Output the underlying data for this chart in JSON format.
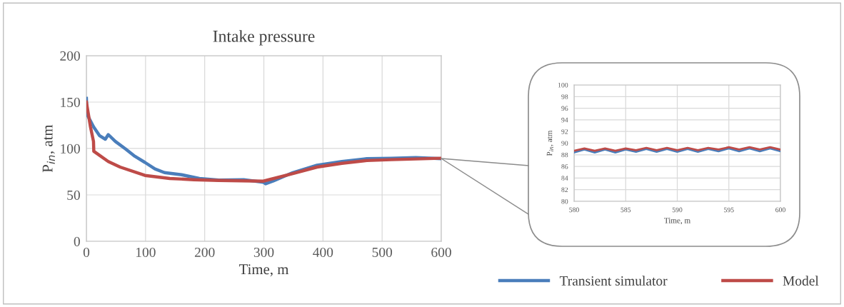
{
  "chart_data": [
    {
      "type": "line",
      "title": "Intake pressure",
      "xlabel": "Time, m",
      "ylabel": "P$_{in}$, atm",
      "xlim": [
        0,
        600
      ],
      "xticks": [
        0,
        100,
        200,
        300,
        400,
        500,
        600
      ],
      "ylim": [
        0,
        200
      ],
      "yticks": [
        0,
        50,
        100,
        150,
        200
      ],
      "grid": true,
      "legend": "bottom right",
      "series": [
        {
          "name": "Transient simulator",
          "color": "#4a7ebb",
          "x": [
            0,
            1,
            12,
            22,
            32,
            37,
            49,
            66,
            82,
            99,
            116,
            132,
            161,
            191,
            224,
            266,
            299,
            303,
            316,
            349,
            390,
            432,
            474,
            515,
            557,
            600
          ],
          "values": [
            154,
            137,
            123.5,
            114,
            110,
            115,
            107.6,
            99.6,
            91.6,
            85,
            78,
            74,
            71.7,
            67.7,
            66,
            66.4,
            63.7,
            62,
            65,
            74,
            82,
            86,
            89,
            89.5,
            90.3,
            89
          ]
        },
        {
          "name": "Model",
          "color": "#be4b48",
          "x": [
            0,
            7,
            12,
            12.5,
            37,
            57,
            99,
            141,
            182,
            224,
            299,
            349,
            390,
            432,
            474,
            515,
            600
          ],
          "values": [
            150,
            123,
            107.6,
            97,
            86,
            80,
            71,
            67.7,
            66.4,
            65.6,
            64.8,
            73,
            80,
            84,
            87,
            88,
            89.5
          ]
        }
      ]
    },
    {
      "type": "line",
      "xlabel": "Time, m",
      "ylabel": "P$_{in}$, atm",
      "xlim": [
        580,
        600
      ],
      "xticks": [
        580,
        585,
        590,
        595,
        600
      ],
      "ylim": [
        80,
        100
      ],
      "yticks": [
        80,
        82,
        84,
        86,
        88,
        90,
        92,
        94,
        96,
        98,
        100
      ],
      "grid": true,
      "series": [
        {
          "color": "#4a7ebb",
          "x": [
            580,
            581,
            582,
            583,
            584,
            585,
            586,
            587,
            588,
            589,
            590,
            591,
            592,
            593,
            594,
            595,
            596,
            597,
            598,
            599,
            600
          ],
          "values": [
            88.4,
            88.9,
            88.4,
            88.9,
            88.4,
            88.9,
            88.5,
            89.0,
            88.5,
            89.0,
            88.5,
            89.0,
            88.5,
            89.0,
            88.6,
            89.1,
            88.6,
            89.1,
            88.6,
            89.1,
            88.6
          ]
        },
        {
          "color": "#be4b48",
          "x": [
            580,
            581,
            582,
            583,
            584,
            585,
            586,
            587,
            588,
            589,
            590,
            591,
            592,
            593,
            594,
            595,
            596,
            597,
            598,
            599,
            600
          ],
          "values": [
            88.7,
            89.1,
            88.7,
            89.1,
            88.7,
            89.1,
            88.8,
            89.2,
            88.8,
            89.2,
            88.8,
            89.2,
            88.8,
            89.2,
            88.9,
            89.3,
            88.9,
            89.3,
            88.9,
            89.3,
            88.9
          ]
        }
      ]
    }
  ]
}
